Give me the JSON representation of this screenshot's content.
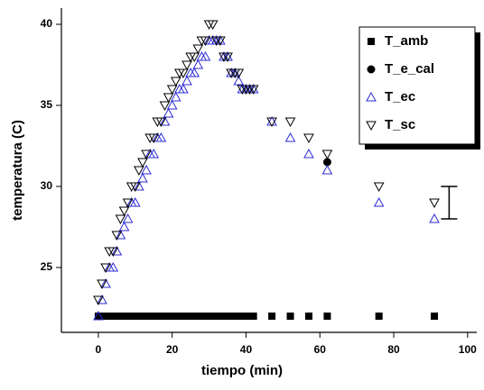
{
  "chart_data": {
    "type": "scatter",
    "x_label": "tiempo (min)",
    "y_label": "temperatura (C)",
    "x": [
      0,
      1,
      2,
      3,
      4,
      5,
      6,
      7,
      8,
      9,
      10,
      11,
      12,
      13,
      14,
      15,
      16,
      17,
      18,
      19,
      20,
      21,
      22,
      23,
      24,
      25,
      26,
      27,
      28,
      29,
      30,
      31,
      32,
      33,
      34,
      35,
      36,
      37,
      38,
      39,
      40,
      41,
      42,
      47,
      52,
      57,
      62,
      76,
      91
    ],
    "series": [
      {
        "name": "T_amb",
        "color": "#000000",
        "marker": "square",
        "filled": true,
        "values": [
          22,
          22,
          22,
          22,
          22,
          22,
          22,
          22,
          22,
          22,
          22,
          22,
          22,
          22,
          22,
          22,
          22,
          22,
          22,
          22,
          22,
          22,
          22,
          22,
          22,
          22,
          22,
          22,
          22,
          22,
          22,
          22,
          22,
          22,
          22,
          22,
          22,
          22,
          22,
          22,
          22,
          22,
          22,
          22,
          22,
          22,
          22,
          22,
          22
        ]
      },
      {
        "name": "T_e_cal",
        "color": "#000000",
        "marker": "circle",
        "filled": true,
        "values": [
          null,
          null,
          null,
          null,
          null,
          null,
          null,
          null,
          null,
          null,
          null,
          null,
          null,
          null,
          null,
          null,
          null,
          null,
          null,
          null,
          null,
          null,
          null,
          null,
          null,
          null,
          null,
          null,
          null,
          null,
          null,
          null,
          null,
          null,
          null,
          null,
          null,
          null,
          null,
          null,
          null,
          null,
          null,
          null,
          null,
          null,
          31.5,
          null,
          null
        ]
      },
      {
        "name": "T_ec",
        "color": "#2b2bd6",
        "marker": "triangle-up",
        "filled": false,
        "values": [
          22,
          23,
          24,
          25,
          25,
          26,
          27,
          27.5,
          28,
          29,
          29,
          30,
          30.5,
          31,
          32,
          32,
          33,
          33,
          34,
          34.5,
          35,
          35.5,
          36,
          36,
          36.5,
          37,
          37,
          37.5,
          38,
          38,
          39,
          39,
          39,
          39,
          38,
          38,
          37,
          37,
          36.5,
          36,
          36,
          36,
          36,
          34,
          33,
          32,
          31,
          29,
          28
        ]
      },
      {
        "name": "T_sc",
        "color": "#000000",
        "marker": "triangle-down",
        "filled": false,
        "values": [
          23,
          24,
          25,
          26,
          26,
          27,
          28,
          28.5,
          29,
          30,
          30,
          31,
          31.5,
          32,
          33,
          33,
          34,
          34,
          35,
          35.5,
          36,
          36.5,
          37,
          37,
          37.5,
          38,
          38,
          38.5,
          39,
          39,
          40,
          40,
          39,
          39,
          38,
          38,
          37,
          37,
          37,
          36,
          36,
          36,
          36,
          34,
          34,
          33,
          32,
          30,
          29
        ]
      }
    ],
    "error_bar": {
      "x": 95,
      "value": 29,
      "error": 1
    },
    "xlim": [
      -10,
      102
    ],
    "ylim": [
      21,
      41
    ],
    "xticks": [
      0,
      20,
      40,
      60,
      80,
      100
    ],
    "yticks": [
      25,
      30,
      35,
      40
    ],
    "legend": "upper right"
  }
}
